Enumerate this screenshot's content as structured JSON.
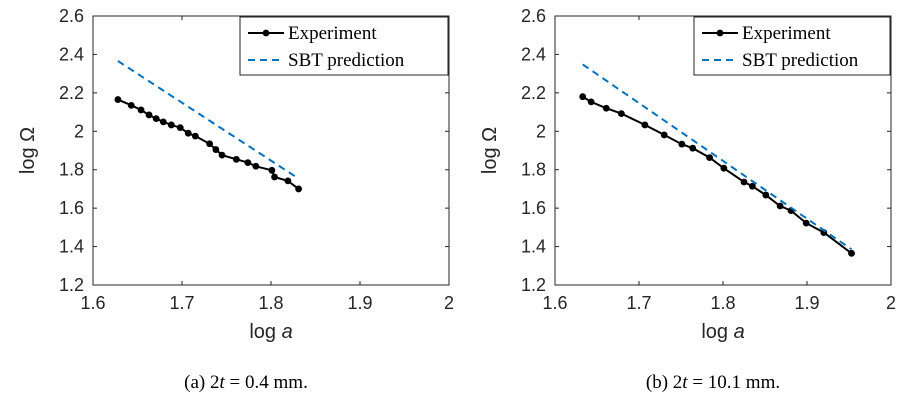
{
  "chart_data": [
    {
      "type": "line",
      "xlabel": "log a",
      "ylabel": "log Ω",
      "xlim": [
        1.6,
        2.0
      ],
      "ylim": [
        1.2,
        2.6
      ],
      "xticks": [
        "1.6",
        "1.7",
        "1.8",
        "1.9",
        "2"
      ],
      "yticks": [
        "1.2",
        "1.4",
        "1.6",
        "1.8",
        "2",
        "2.2",
        "2.4",
        "2.6"
      ],
      "grid": false,
      "legend_position": "top-right",
      "caption": "(a)  2t = 0.4 mm.",
      "series": [
        {
          "name": "Experiment",
          "style": "solid-markers",
          "color": "#000000",
          "x": [
            1.628,
            1.643,
            1.654,
            1.663,
            1.671,
            1.679,
            1.688,
            1.698,
            1.707,
            1.715,
            1.731,
            1.738,
            1.745,
            1.761,
            1.774,
            1.783,
            1.801,
            1.804,
            1.819,
            1.831
          ],
          "y": [
            2.165,
            2.135,
            2.111,
            2.085,
            2.066,
            2.049,
            2.033,
            2.019,
            1.99,
            1.975,
            1.935,
            1.905,
            1.876,
            1.854,
            1.837,
            1.818,
            1.797,
            1.762,
            1.742,
            1.7
          ]
        },
        {
          "name": "SBT prediction",
          "style": "dashed",
          "color": "#0072BD",
          "x": [
            1.628,
            1.831
          ],
          "y": [
            2.366,
            1.754
          ]
        }
      ]
    },
    {
      "type": "line",
      "xlabel": "log a",
      "ylabel": "log Ω",
      "xlim": [
        1.6,
        2.0
      ],
      "ylim": [
        1.2,
        2.6
      ],
      "xticks": [
        "1.6",
        "1.7",
        "1.8",
        "1.9",
        "2"
      ],
      "yticks": [
        "1.2",
        "1.4",
        "1.6",
        "1.8",
        "2",
        "2.2",
        "2.4",
        "2.6"
      ],
      "grid": false,
      "legend_position": "top-right",
      "caption": "(b)  2t = 10.1 mm.",
      "series": [
        {
          "name": "Experiment",
          "style": "solid-markers",
          "color": "#000000",
          "x": [
            1.633,
            1.643,
            1.661,
            1.679,
            1.707,
            1.73,
            1.751,
            1.764,
            1.784,
            1.801,
            1.825,
            1.835,
            1.851,
            1.868,
            1.881,
            1.899,
            1.92,
            1.953
          ],
          "y": [
            2.18,
            2.153,
            2.12,
            2.092,
            2.033,
            1.981,
            1.933,
            1.912,
            1.863,
            1.808,
            1.736,
            1.714,
            1.668,
            1.611,
            1.587,
            1.522,
            1.473,
            1.365
          ]
        },
        {
          "name": "SBT prediction",
          "style": "dashed",
          "color": "#0072BD",
          "x": [
            1.633,
            1.953
          ],
          "y": [
            2.348,
            1.386
          ]
        }
      ]
    }
  ]
}
